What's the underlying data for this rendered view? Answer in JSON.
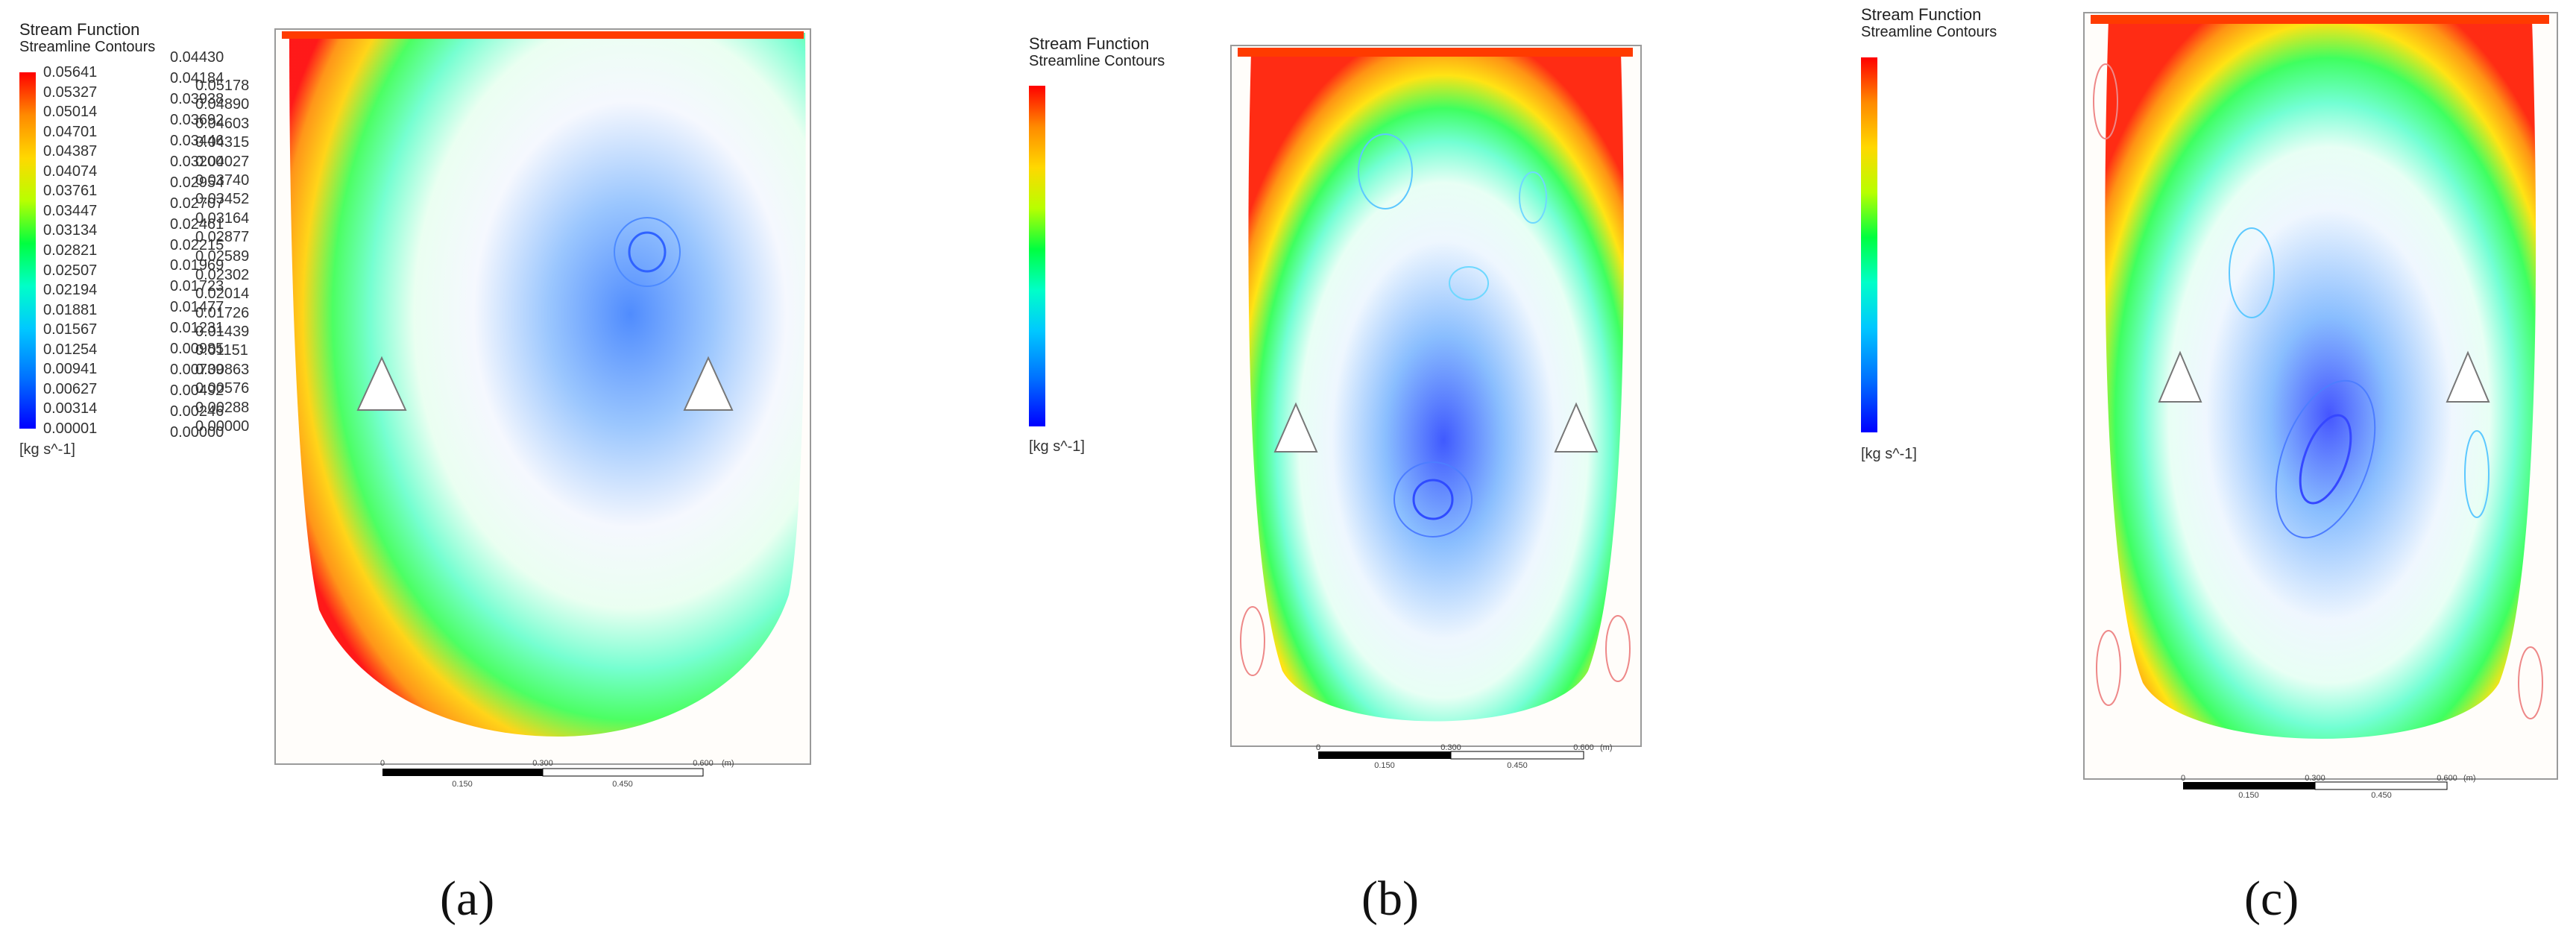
{
  "panels": [
    {
      "label": "(a)",
      "legend": {
        "title": "Stream Function",
        "subtitle": "Streamline Contours",
        "ticks": [
          "0.05641",
          "0.05327",
          "0.05014",
          "0.04701",
          "0.04387",
          "0.04074",
          "0.03761",
          "0.03447",
          "0.03134",
          "0.02821",
          "0.02507",
          "0.02194",
          "0.01881",
          "0.01567",
          "0.01254",
          "0.00941",
          "0.00627",
          "0.00314",
          "0.00001"
        ],
        "unit": "[kg s^-1]"
      },
      "scale": {
        "top": [
          "0",
          "0.300",
          "0.600"
        ],
        "top_unit": "(m)",
        "bottom": [
          "0.150",
          "0.450"
        ]
      }
    },
    {
      "label": "(b)",
      "legend": {
        "title": "Stream Function",
        "subtitle": "Streamline Contours",
        "ticks": [
          "0.05178",
          "0.04890",
          "0.04603",
          "0.04315",
          "0.04027",
          "0.03740",
          "0.03452",
          "0.03164",
          "0.02877",
          "0.02589",
          "0.02302",
          "0.02014",
          "0.01726",
          "0.01439",
          "0.01151",
          "0.00863",
          "0.00576",
          "0.00288",
          "0.00000"
        ],
        "unit": "[kg s^-1]"
      },
      "scale": {
        "top": [
          "0",
          "0.300",
          "0.600"
        ],
        "top_unit": "(m)",
        "bottom": [
          "0.150",
          "0.450"
        ]
      }
    },
    {
      "label": "(c)",
      "legend": {
        "title": "Stream Function",
        "subtitle": "Streamline Contours",
        "ticks": [
          "0.04430",
          "0.04184",
          "0.03938",
          "0.03692",
          "0.03446",
          "0.03200",
          "0.02954",
          "0.02707",
          "0.02461",
          "0.02215",
          "0.01969",
          "0.01723",
          "0.01477",
          "0.01231",
          "0.00985",
          "0.00739",
          "0.00492",
          "0.00246",
          "0.00000"
        ],
        "unit": "[kg s^-1]"
      },
      "scale": {
        "top": [
          "0",
          "0.300",
          "0.600"
        ],
        "top_unit": "(m)",
        "bottom": [
          "0.150",
          "0.450"
        ]
      }
    }
  ]
}
